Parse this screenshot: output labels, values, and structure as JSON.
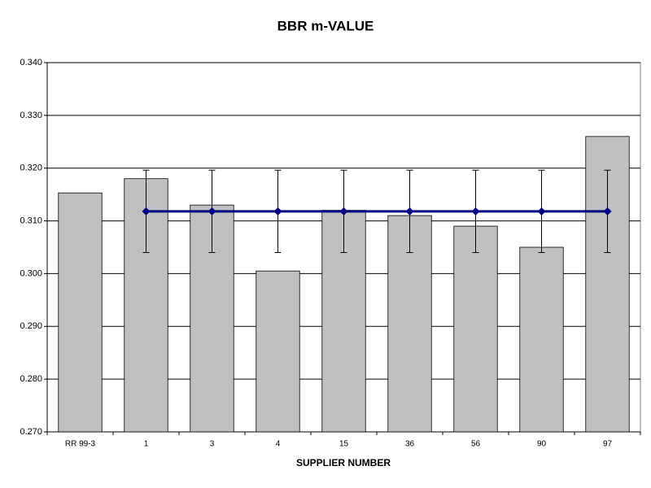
{
  "chart_data": {
    "type": "bar",
    "title": "BBR m-VALUE",
    "x_label": "SUPPLIER NUMBER",
    "categories": [
      "RR 99-3",
      "1",
      "3",
      "4",
      "15",
      "36",
      "56",
      "90",
      "97"
    ],
    "series": [
      {
        "type": "bar",
        "color": "#c0c0c0",
        "values": [
          0.3153,
          0.318,
          0.313,
          0.3005,
          0.312,
          0.311,
          0.309,
          0.305,
          0.326
        ]
      },
      {
        "type": "line",
        "color": "#000080",
        "values": [
          null,
          0.3118,
          0.3118,
          0.3118,
          0.3118,
          0.3118,
          0.3118,
          0.3118,
          0.3118
        ],
        "errors": [
          null,
          0.0078,
          0.0078,
          0.0078,
          0.0078,
          0.0078,
          0.0078,
          0.0078,
          0.0078
        ]
      }
    ],
    "ylim": [
      0.27,
      0.34
    ],
    "yticks": [
      {
        "value": 0.27,
        "label": "0.270"
      },
      {
        "value": 0.28,
        "label": "0.280"
      },
      {
        "value": 0.29,
        "label": "0.290"
      },
      {
        "value": 0.3,
        "label": "0.300"
      },
      {
        "value": 0.31,
        "label": "0.310"
      },
      {
        "value": 0.32,
        "label": "0.320"
      },
      {
        "value": 0.33,
        "label": "0.330"
      },
      {
        "value": 0.34,
        "label": "0.340"
      }
    ],
    "grid": true
  }
}
